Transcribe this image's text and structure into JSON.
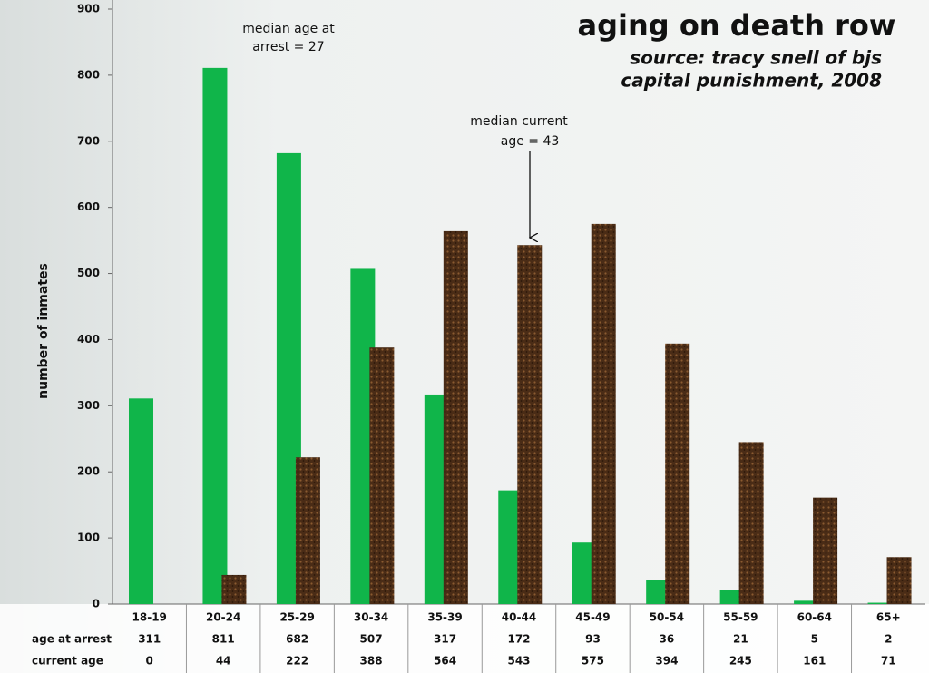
{
  "chart_data": {
    "type": "bar",
    "title": "aging on death row",
    "subtitle_lines": [
      "source: tracy snell of bjs",
      "capital punishment, 2008"
    ],
    "y_label": "number of inmates",
    "annotations": [
      [
        "median age at",
        "arrest = 27"
      ],
      [
        "median current",
        "age = 43"
      ]
    ],
    "categories": [
      "18-19",
      "20-24",
      "25-29",
      "30-34",
      "35-39",
      "40-44",
      "45-49",
      "50-54",
      "55-59",
      "60-64",
      "65+"
    ],
    "series": [
      {
        "name": "age at arrest",
        "color": "#10b54a",
        "values": [
          311,
          811,
          682,
          507,
          317,
          172,
          93,
          36,
          21,
          5,
          2
        ]
      },
      {
        "name": "current age",
        "color": "#5b3a1f",
        "values": [
          0,
          44,
          222,
          388,
          564,
          543,
          575,
          394,
          245,
          161,
          71
        ]
      }
    ],
    "ylim": [
      0,
      900
    ],
    "yticks": [
      0,
      100,
      200,
      300,
      400,
      500,
      600,
      700,
      800,
      900
    ]
  }
}
